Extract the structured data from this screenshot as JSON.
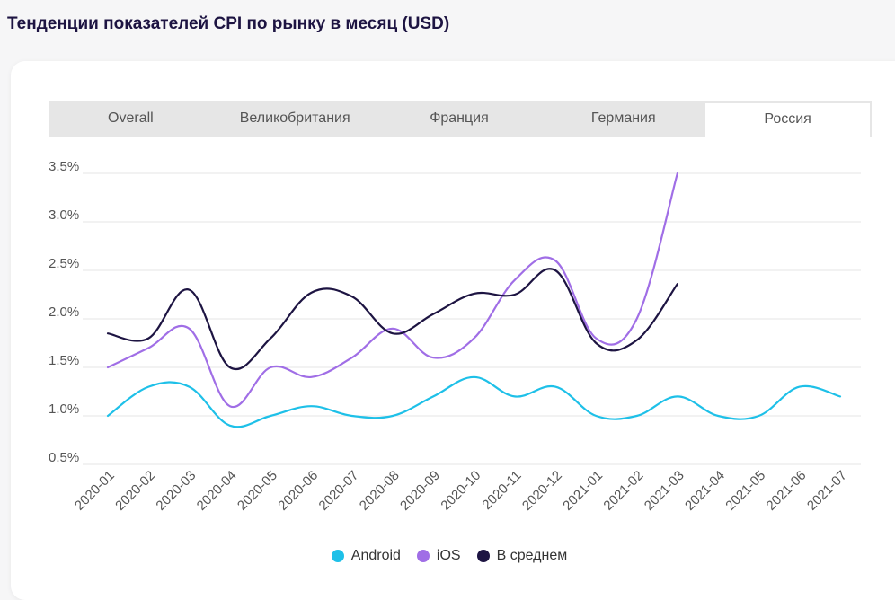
{
  "title": "Тенденции показателей CPI по рынку в месяц (USD)",
  "tabs": [
    {
      "label": "Overall",
      "active": false
    },
    {
      "label": "Великобритания",
      "active": false
    },
    {
      "label": "Франция",
      "active": false
    },
    {
      "label": "Германия",
      "active": false
    },
    {
      "label": "Россия",
      "active": true
    }
  ],
  "chart_data": {
    "type": "line",
    "x": [
      "2020-01",
      "2020-02",
      "2020-03",
      "2020-04",
      "2020-05",
      "2020-06",
      "2020-07",
      "2020-08",
      "2020-09",
      "2020-10",
      "2020-11",
      "2020-12",
      "2021-01",
      "2021-02",
      "2021-03",
      "2021-04",
      "2021-05",
      "2021-06",
      "2021-07"
    ],
    "yticks": [
      "3.5%",
      "3.0%",
      "2.5%",
      "2.0%",
      "1.5%",
      "1.0%",
      "0.5%"
    ],
    "ylim": [
      0.5,
      3.5
    ],
    "grid": true,
    "legend_position": "bottom",
    "series": [
      {
        "name": "Android",
        "color": "#1ec0e8",
        "values": [
          1.0,
          1.3,
          1.3,
          0.9,
          1.0,
          1.1,
          1.0,
          1.0,
          1.2,
          1.4,
          1.2,
          1.3,
          1.0,
          1.0,
          1.2,
          1.0,
          1.0,
          1.3,
          1.2
        ]
      },
      {
        "name": "iOS",
        "color": "#a06ee6",
        "values": [
          1.5,
          1.7,
          1.9,
          1.1,
          1.5,
          1.4,
          1.6,
          1.9,
          1.6,
          1.8,
          2.4,
          2.6,
          1.8,
          2.0,
          3.5,
          null,
          null,
          null,
          null
        ]
      },
      {
        "name": "В среднем",
        "color": "#1d1442",
        "values": [
          1.85,
          1.8,
          2.3,
          1.5,
          1.8,
          2.27,
          2.23,
          1.85,
          2.05,
          2.26,
          2.25,
          2.5,
          1.75,
          1.78,
          2.36,
          null,
          null,
          null,
          null
        ]
      }
    ]
  }
}
